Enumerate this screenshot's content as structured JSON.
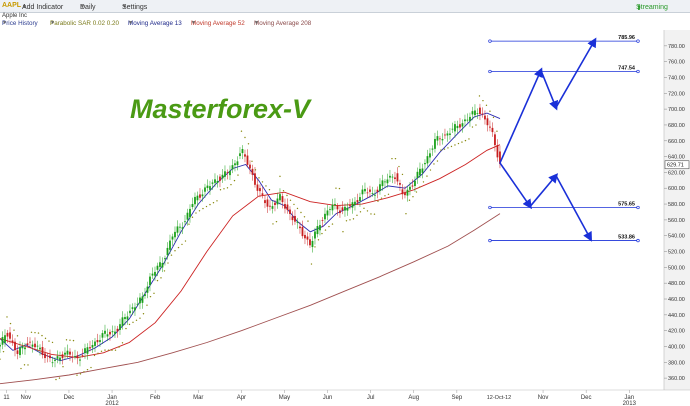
{
  "toolbar": {
    "ticker": "AAPL",
    "add_indicator": "Add Indicator",
    "period": "Daily",
    "settings": "Settings",
    "status": "Streaming"
  },
  "stock_name": "Apple Inc",
  "watermark": "Masterforex-V",
  "indicators": [
    {
      "label": "Price History",
      "color": "#2a3b8f"
    },
    {
      "label": "Parabolic SAR 0.02 0.20",
      "color": "#7a7a1a"
    },
    {
      "label": "Moving Average 13",
      "color": "#1f2a8a"
    },
    {
      "label": "Moving Average 52",
      "color": "#c0392b"
    },
    {
      "label": "Moving Average 208",
      "color": "#8b4a4a"
    }
  ],
  "colors": {
    "up": "#1aa01a",
    "down": "#c81e1e",
    "target": "#1a30d8",
    "ma13": "#2a2ab0",
    "ma52": "#cc2222",
    "ma208": "#a05050",
    "sar": "#8a8a10"
  },
  "chart_data": {
    "type": "candlestick",
    "ylim": [
      345,
      800
    ],
    "y_ticks": [
      360,
      380,
      400,
      420,
      440,
      460,
      480,
      500,
      520,
      540,
      560,
      580,
      600,
      620,
      640,
      660,
      680,
      700,
      720,
      740,
      760,
      780
    ],
    "x_labels": [
      {
        "label": "11",
        "month": 9.85
      },
      {
        "label": "Nov",
        "month": 10.3
      },
      {
        "label": "Dec",
        "month": 11.3
      },
      {
        "label": "Jan",
        "month": 12.3,
        "sub": "2012"
      },
      {
        "label": "Feb",
        "month": 13.3
      },
      {
        "label": "Mar",
        "month": 14.3
      },
      {
        "label": "Apr",
        "month": 15.3
      },
      {
        "label": "May",
        "month": 16.3
      },
      {
        "label": "Jun",
        "month": 17.3
      },
      {
        "label": "Jul",
        "month": 18.3
      },
      {
        "label": "Aug",
        "month": 19.3
      },
      {
        "label": "Sep",
        "month": 20.3
      },
      {
        "label": "Nov",
        "month": 22.3
      },
      {
        "label": "Dec",
        "month": 23.3
      },
      {
        "label": "Jan",
        "month": 24.3,
        "sub": "2013"
      }
    ],
    "current_date_label": "12-Oct-12",
    "current_date_month": 21.3,
    "last_price_label": "629.71",
    "last_price": 629.71,
    "price_path": [
      [
        9.7,
        400
      ],
      [
        9.85,
        420
      ],
      [
        10.1,
        390
      ],
      [
        10.3,
        405
      ],
      [
        10.6,
        398
      ],
      [
        10.9,
        380
      ],
      [
        11.2,
        392
      ],
      [
        11.5,
        385
      ],
      [
        11.8,
        400
      ],
      [
        12.1,
        415
      ],
      [
        12.4,
        420
      ],
      [
        12.7,
        445
      ],
      [
        13.0,
        460
      ],
      [
        13.2,
        490
      ],
      [
        13.45,
        505
      ],
      [
        13.7,
        540
      ],
      [
        14.0,
        560
      ],
      [
        14.2,
        585
      ],
      [
        14.45,
        598
      ],
      [
        14.75,
        612
      ],
      [
        15.0,
        620
      ],
      [
        15.15,
        632
      ],
      [
        15.3,
        648
      ],
      [
        15.5,
        625
      ],
      [
        15.7,
        595
      ],
      [
        15.95,
        575
      ],
      [
        16.2,
        588
      ],
      [
        16.45,
        565
      ],
      [
        16.7,
        545
      ],
      [
        16.9,
        528
      ],
      [
        17.15,
        560
      ],
      [
        17.4,
        578
      ],
      [
        17.65,
        572
      ],
      [
        17.9,
        580
      ],
      [
        18.15,
        598
      ],
      [
        18.35,
        592
      ],
      [
        18.6,
        608
      ],
      [
        18.85,
        618
      ],
      [
        19.05,
        590
      ],
      [
        19.3,
        608
      ],
      [
        19.55,
        632
      ],
      [
        19.8,
        660
      ],
      [
        20.05,
        668
      ],
      [
        20.3,
        678
      ],
      [
        20.55,
        688
      ],
      [
        20.8,
        700
      ],
      [
        21.0,
        682
      ],
      [
        21.15,
        665
      ],
      [
        21.3,
        630
      ]
    ],
    "series": [
      {
        "name": "Moving Average 13",
        "key": "ma13",
        "points": [
          [
            9.7,
            410
          ],
          [
            10.0,
            395
          ],
          [
            10.3,
            402
          ],
          [
            10.7,
            390
          ],
          [
            11.1,
            382
          ],
          [
            11.5,
            388
          ],
          [
            11.9,
            398
          ],
          [
            12.3,
            412
          ],
          [
            12.7,
            435
          ],
          [
            13.1,
            470
          ],
          [
            13.5,
            505
          ],
          [
            13.9,
            545
          ],
          [
            14.3,
            580
          ],
          [
            14.7,
            605
          ],
          [
            15.1,
            625
          ],
          [
            15.4,
            630
          ],
          [
            15.7,
            610
          ],
          [
            16.0,
            585
          ],
          [
            16.3,
            578
          ],
          [
            16.6,
            558
          ],
          [
            16.9,
            545
          ],
          [
            17.2,
            552
          ],
          [
            17.5,
            568
          ],
          [
            17.9,
            578
          ],
          [
            18.3,
            590
          ],
          [
            18.7,
            603
          ],
          [
            19.1,
            600
          ],
          [
            19.5,
            618
          ],
          [
            19.9,
            645
          ],
          [
            20.3,
            668
          ],
          [
            20.7,
            690
          ],
          [
            21.0,
            695
          ],
          [
            21.3,
            688
          ]
        ]
      },
      {
        "name": "Moving Average 52",
        "key": "ma52",
        "points": [
          [
            9.7,
            410
          ],
          [
            10.3,
            400
          ],
          [
            10.9,
            390
          ],
          [
            11.5,
            386
          ],
          [
            12.1,
            392
          ],
          [
            12.7,
            405
          ],
          [
            13.3,
            430
          ],
          [
            13.9,
            470
          ],
          [
            14.5,
            520
          ],
          [
            15.1,
            565
          ],
          [
            15.7,
            590
          ],
          [
            16.3,
            595
          ],
          [
            16.9,
            583
          ],
          [
            17.5,
            578
          ],
          [
            18.1,
            580
          ],
          [
            18.7,
            588
          ],
          [
            19.3,
            598
          ],
          [
            19.9,
            612
          ],
          [
            20.5,
            630
          ],
          [
            21.0,
            648
          ],
          [
            21.3,
            655
          ]
        ]
      },
      {
        "name": "Moving Average 208",
        "key": "ma208",
        "points": [
          [
            9.7,
            353
          ],
          [
            10.5,
            358
          ],
          [
            11.3,
            364
          ],
          [
            12.1,
            372
          ],
          [
            12.9,
            380
          ],
          [
            13.7,
            392
          ],
          [
            14.5,
            405
          ],
          [
            15.3,
            420
          ],
          [
            16.1,
            436
          ],
          [
            16.9,
            452
          ],
          [
            17.7,
            470
          ],
          [
            18.5,
            488
          ],
          [
            19.3,
            507
          ],
          [
            20.1,
            527
          ],
          [
            20.7,
            547
          ],
          [
            21.3,
            568
          ]
        ]
      }
    ],
    "targets": [
      {
        "label": "785.96",
        "value": 785.96
      },
      {
        "label": "747.54",
        "value": 747.54
      },
      {
        "label": "575.65",
        "value": 575.65
      },
      {
        "label": "533.86",
        "value": 533.86
      }
    ],
    "projection_up": [
      [
        21.3,
        632
      ],
      [
        22.25,
        749
      ],
      [
        22.6,
        702
      ],
      [
        23.5,
        787
      ]
    ],
    "projection_down": [
      [
        21.3,
        632
      ],
      [
        22.0,
        577
      ],
      [
        22.6,
        616
      ],
      [
        23.4,
        536
      ]
    ]
  }
}
